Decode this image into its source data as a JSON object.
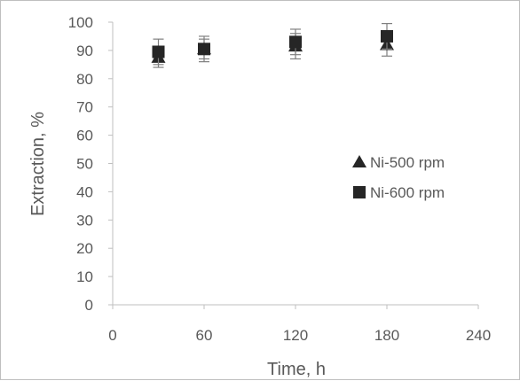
{
  "chart_data": {
    "type": "scatter",
    "title": "",
    "xlabel": "Time, h",
    "ylabel": "Extraction, %",
    "xlim": [
      0,
      240
    ],
    "ylim": [
      0,
      100
    ],
    "xticks": [
      0,
      60,
      120,
      180,
      240
    ],
    "yticks": [
      0,
      10,
      20,
      30,
      40,
      50,
      60,
      70,
      80,
      90,
      100
    ],
    "grid": false,
    "legend_position": "right",
    "series": [
      {
        "name": "Ni-500 rpm",
        "marker": "triangle",
        "color": "#262626",
        "x": [
          30,
          60,
          120,
          180
        ],
        "y": [
          87.5,
          90.5,
          91.5,
          92
        ],
        "error": [
          3.5,
          3.5,
          4.5,
          4
        ]
      },
      {
        "name": "Ni-600 rpm",
        "marker": "square",
        "color": "#262626",
        "x": [
          30,
          60,
          120,
          180
        ],
        "y": [
          89.5,
          90.5,
          93,
          95
        ],
        "error": [
          4.5,
          4.5,
          4.5,
          4.5
        ]
      }
    ],
    "axis_color": "#bfbfbf",
    "text_color": "#595959"
  }
}
